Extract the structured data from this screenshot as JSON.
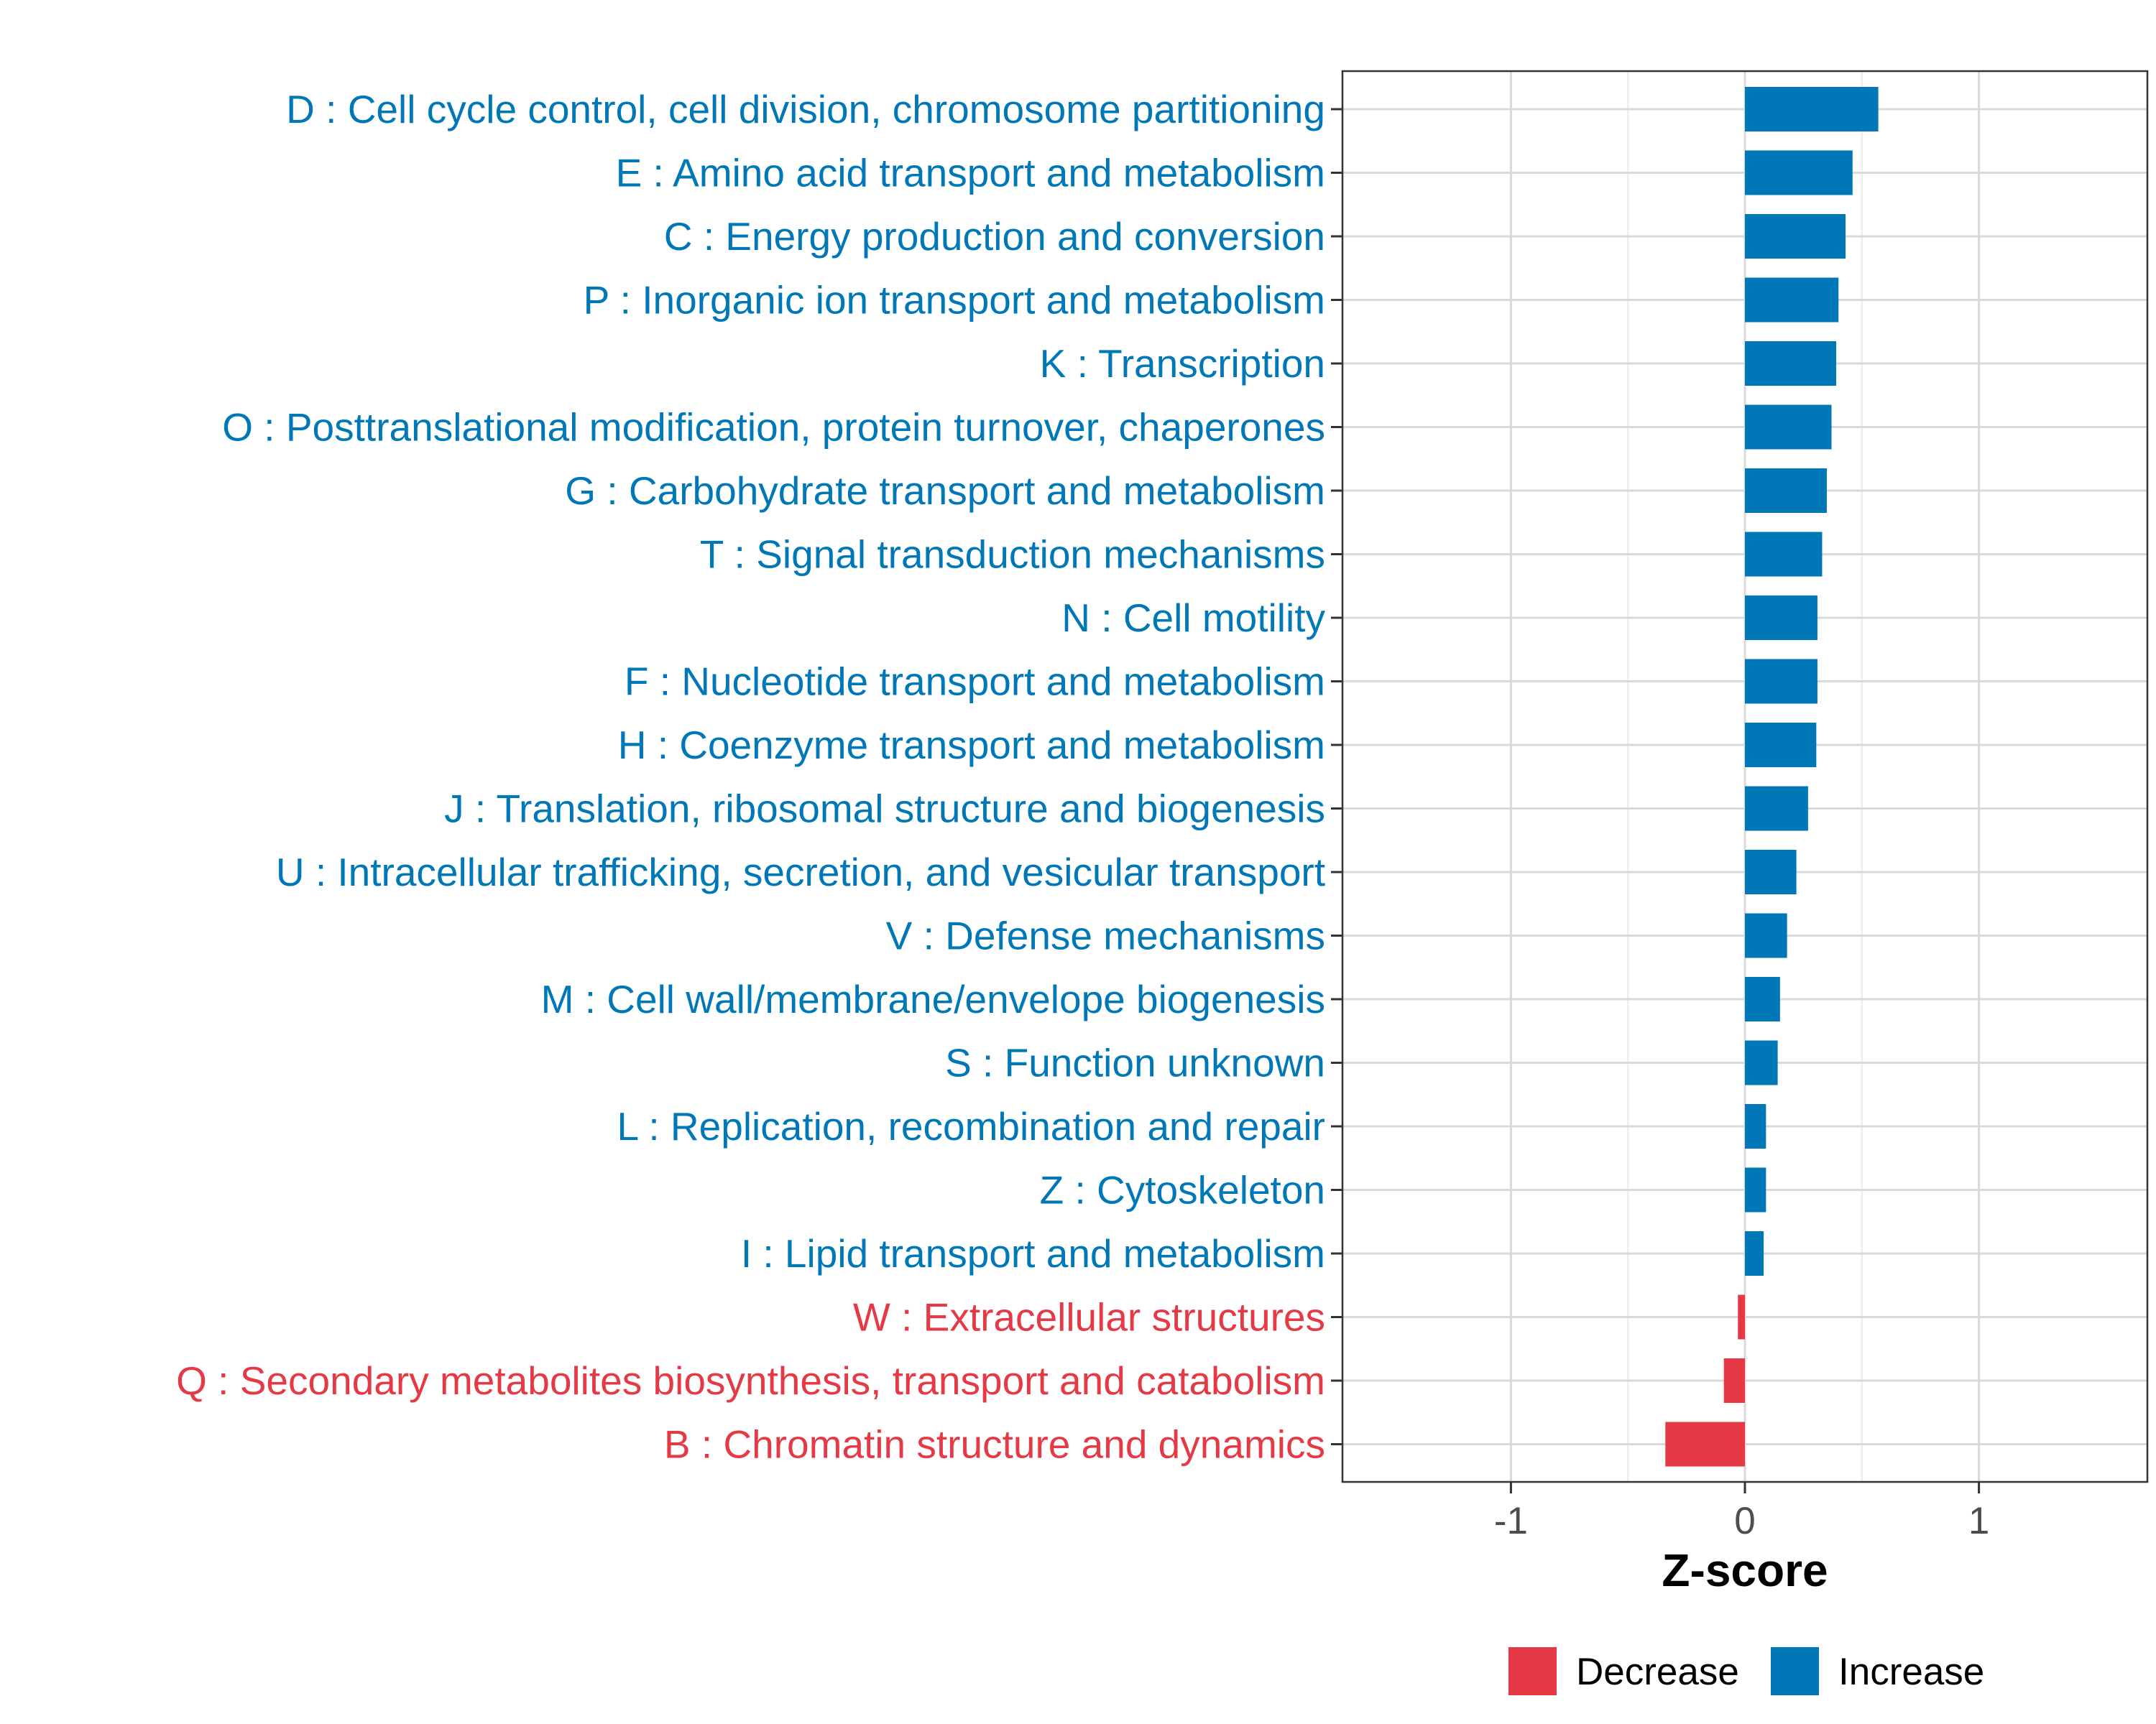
{
  "chart_data": {
    "type": "bar",
    "orientation": "horizontal",
    "title": "",
    "xlabel": "Z-score",
    "ylabel": "",
    "xlim": [
      -1.72,
      1.72
    ],
    "xticks": [
      -1,
      0,
      1
    ],
    "xtick_labels": [
      "-1",
      "0",
      "1"
    ],
    "grid": true,
    "legend_position": "bottom",
    "legend": [
      {
        "name": "Decrease",
        "color": "#E63946"
      },
      {
        "name": "Increase",
        "color": "#0077B6"
      }
    ],
    "categories": [
      "D : Cell cycle control, cell division, chromosome partitioning",
      "E : Amino acid transport and metabolism",
      "C : Energy production and conversion",
      "P : Inorganic ion transport and metabolism",
      "K : Transcription",
      "O : Posttranslational modification, protein turnover, chaperones",
      "G : Carbohydrate transport and metabolism",
      "T : Signal transduction mechanisms",
      "N : Cell motility",
      "F : Nucleotide transport and metabolism",
      "H : Coenzyme transport and metabolism",
      "J : Translation, ribosomal structure and biogenesis",
      "U : Intracellular trafficking, secretion, and vesicular transport",
      "V : Defense mechanisms",
      "M : Cell wall/membrane/envelope biogenesis",
      "S : Function unknown",
      "L : Replication, recombination and repair",
      "Z : Cytoskeleton",
      "I : Lipid transport and metabolism",
      "W : Extracellular structures",
      "Q : Secondary metabolites biosynthesis, transport and catabolism",
      "B : Chromatin structure and dynamics"
    ],
    "values": [
      0.57,
      0.46,
      0.43,
      0.4,
      0.39,
      0.37,
      0.35,
      0.33,
      0.31,
      0.31,
      0.305,
      0.27,
      0.22,
      0.18,
      0.15,
      0.14,
      0.09,
      0.09,
      0.08,
      -0.03,
      -0.09,
      -0.34
    ],
    "groups": [
      "Increase",
      "Increase",
      "Increase",
      "Increase",
      "Increase",
      "Increase",
      "Increase",
      "Increase",
      "Increase",
      "Increase",
      "Increase",
      "Increase",
      "Increase",
      "Increase",
      "Increase",
      "Increase",
      "Increase",
      "Increase",
      "Increase",
      "Decrease",
      "Decrease",
      "Decrease"
    ]
  }
}
